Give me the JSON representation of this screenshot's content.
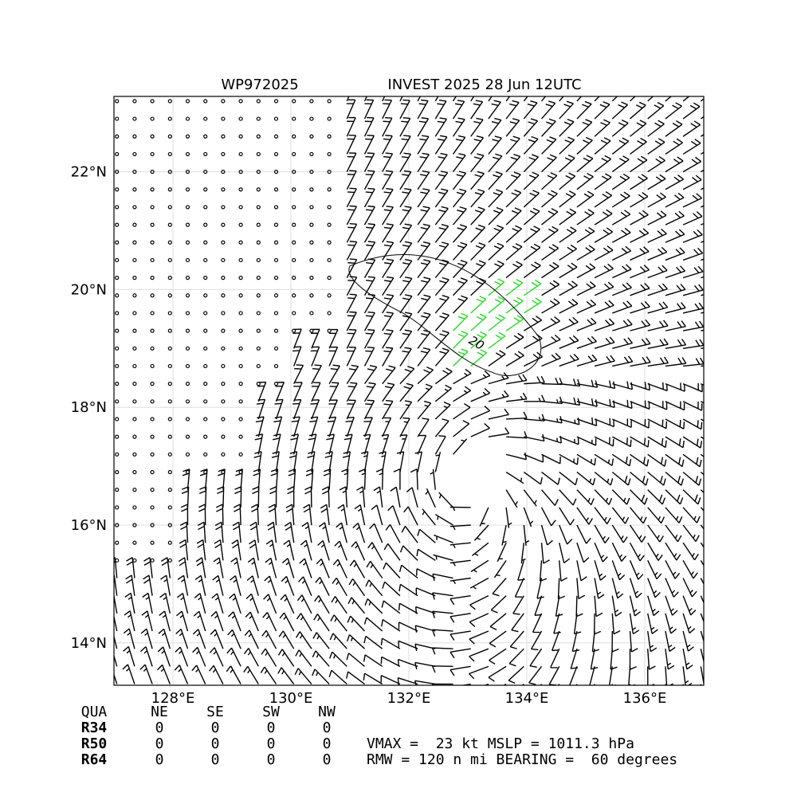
{
  "map": {
    "title_left": "WP972025",
    "title_right": "INVEST 2025 28 Jun 12UTC",
    "xlim": [
      127,
      137.0
    ],
    "ylim": [
      13.28,
      23.28
    ],
    "xticks": [
      {
        "value": 128,
        "label": "128°E"
      },
      {
        "value": 130,
        "label": "130°E"
      },
      {
        "value": 132,
        "label": "132°E"
      },
      {
        "value": 134,
        "label": "134°E"
      },
      {
        "value": 136,
        "label": "136°E"
      }
    ],
    "yticks": [
      {
        "value": 14,
        "label": "14°N"
      },
      {
        "value": 16,
        "label": "16°N"
      },
      {
        "value": 18,
        "label": "18°N"
      },
      {
        "value": 20,
        "label": "20°N"
      },
      {
        "value": 22,
        "label": "22°N"
      }
    ],
    "contour_label": "20",
    "grid": true
  },
  "table": {
    "header": [
      "QUA",
      "NE",
      "SE",
      "SW",
      "NW"
    ],
    "rows": [
      [
        "R34",
        "0",
        "0",
        "0",
        "0"
      ],
      [
        "R50",
        "0",
        "0",
        "0",
        "0"
      ],
      [
        "R64",
        "0",
        "0",
        "0",
        "0"
      ]
    ]
  },
  "info": [
    "VMAX =  23 kt MSLP = 1011.3 hPa",
    "RMW = 120 n mi BEARING =  60 degrees"
  ]
}
